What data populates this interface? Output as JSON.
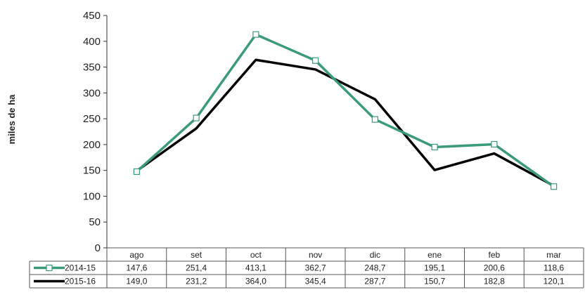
{
  "chart_data": {
    "type": "line",
    "title": "",
    "xlabel": "",
    "ylabel": "miles de ha",
    "ylim": [
      0,
      450
    ],
    "yticks": [
      "0",
      "50",
      "100",
      "150",
      "200",
      "250",
      "300",
      "350",
      "400",
      "450"
    ],
    "categories": [
      "ago",
      "set",
      "oct",
      "nov",
      "dic",
      "ene",
      "feb",
      "mar"
    ],
    "grid": false,
    "legend": "data-table",
    "series": [
      {
        "name": "2014-15",
        "color": "#3a9a7a",
        "marker": "square-open",
        "values": [
          147.6,
          251.4,
          413.1,
          362.7,
          248.7,
          195.1,
          200.6,
          118.6
        ],
        "labels": [
          "147,6",
          "251,4",
          "413,1",
          "362,7",
          "248,7",
          "195,1",
          "200,6",
          "118,6"
        ]
      },
      {
        "name": "2015-16",
        "color": "#000000",
        "marker": "none",
        "values": [
          149.0,
          231.2,
          364.0,
          345.4,
          287.7,
          150.7,
          182.8,
          120.1
        ],
        "labels": [
          "149,0",
          "231,2",
          "364,0",
          "345,4",
          "287,7",
          "150,7",
          "182,8",
          "120,1"
        ]
      }
    ]
  }
}
